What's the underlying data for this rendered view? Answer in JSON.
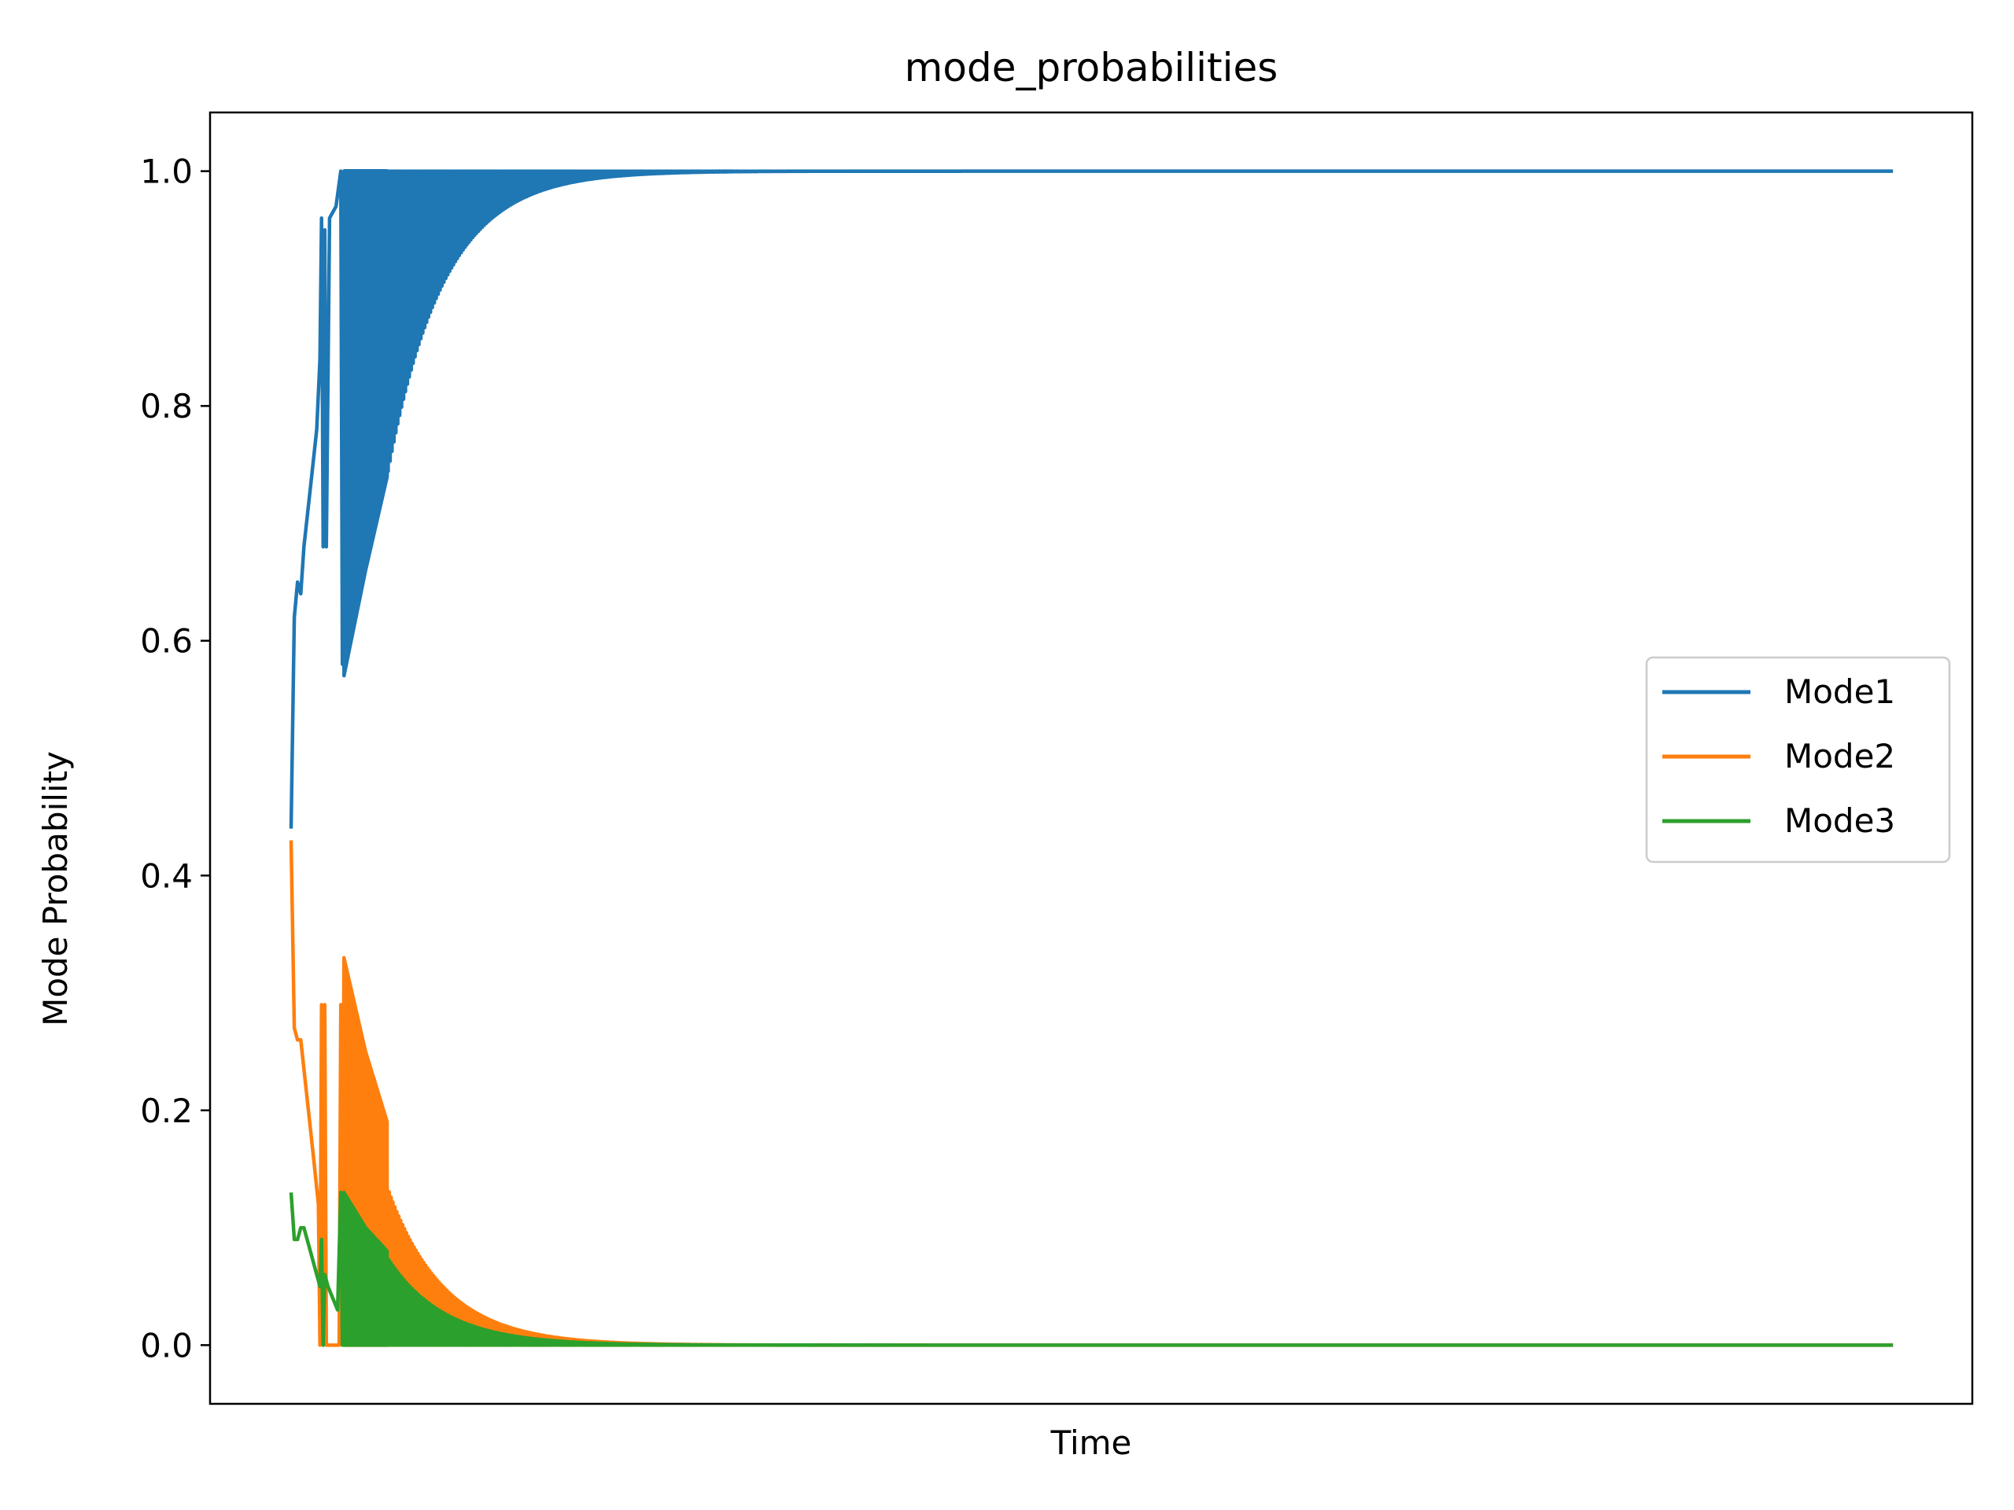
{
  "chart_data": {
    "type": "line",
    "title": "mode_probabilities",
    "xlabel": "Time",
    "ylabel": "Mode Probability",
    "ylim": [
      -0.05,
      1.05
    ],
    "yticks": [
      "0.0",
      "0.2",
      "0.4",
      "0.6",
      "0.8",
      "1.0"
    ],
    "xticks": [],
    "grid": false,
    "legend_position": "center-right",
    "x": {
      "start_fraction": 0.046,
      "end_fraction": 0.955
    },
    "series": [
      {
        "name": "Mode1",
        "color": "#1f77b4",
        "initial": 0.44,
        "early_points": [
          [
            0.0,
            0.44
          ],
          [
            0.002,
            0.62
          ],
          [
            0.004,
            0.65
          ],
          [
            0.006,
            0.64
          ],
          [
            0.008,
            0.68
          ],
          [
            0.012,
            0.73
          ],
          [
            0.016,
            0.78
          ],
          [
            0.018,
            0.84
          ],
          [
            0.019,
            0.96
          ],
          [
            0.02,
            0.68
          ],
          [
            0.021,
            0.95
          ],
          [
            0.022,
            0.68
          ],
          [
            0.024,
            0.96
          ],
          [
            0.028,
            0.97
          ],
          [
            0.031,
            1.0
          ],
          [
            0.032,
            0.58
          ],
          [
            0.033,
            1.0
          ]
        ],
        "oscillation_min_start": 0.57,
        "oscillation_min_mid": 0.66,
        "oscillation_min_late": 0.74,
        "steady_state": 1.0
      },
      {
        "name": "Mode2",
        "color": "#ff7f0e",
        "initial": 0.43,
        "early_points": [
          [
            0.0,
            0.43
          ],
          [
            0.002,
            0.27
          ],
          [
            0.004,
            0.26
          ],
          [
            0.006,
            0.26
          ],
          [
            0.01,
            0.21
          ],
          [
            0.014,
            0.16
          ],
          [
            0.017,
            0.12
          ],
          [
            0.018,
            0.0
          ],
          [
            0.019,
            0.29
          ],
          [
            0.02,
            0.0
          ],
          [
            0.021,
            0.29
          ],
          [
            0.022,
            0.0
          ],
          [
            0.024,
            0.0
          ],
          [
            0.027,
            0.0
          ],
          [
            0.03,
            0.0
          ],
          [
            0.031,
            0.29
          ],
          [
            0.032,
            0.0
          ]
        ],
        "oscillation_peak_start": 0.33,
        "oscillation_peak_mid": 0.25,
        "oscillation_peak_late": 0.19,
        "steady_state": 0.0
      },
      {
        "name": "Mode3",
        "color": "#2ca02c",
        "initial": 0.13,
        "early_points": [
          [
            0.0,
            0.13
          ],
          [
            0.002,
            0.09
          ],
          [
            0.004,
            0.09
          ],
          [
            0.006,
            0.1
          ],
          [
            0.008,
            0.1
          ],
          [
            0.012,
            0.08
          ],
          [
            0.016,
            0.06
          ],
          [
            0.018,
            0.05
          ],
          [
            0.019,
            0.09
          ],
          [
            0.02,
            0.0
          ],
          [
            0.021,
            0.06
          ],
          [
            0.023,
            0.05
          ],
          [
            0.026,
            0.04
          ],
          [
            0.029,
            0.03
          ],
          [
            0.031,
            0.13
          ],
          [
            0.032,
            0.0
          ]
        ],
        "oscillation_peak_start": 0.13,
        "oscillation_peak_mid": 0.1,
        "oscillation_peak_late": 0.08,
        "steady_state": 0.0
      }
    ]
  }
}
